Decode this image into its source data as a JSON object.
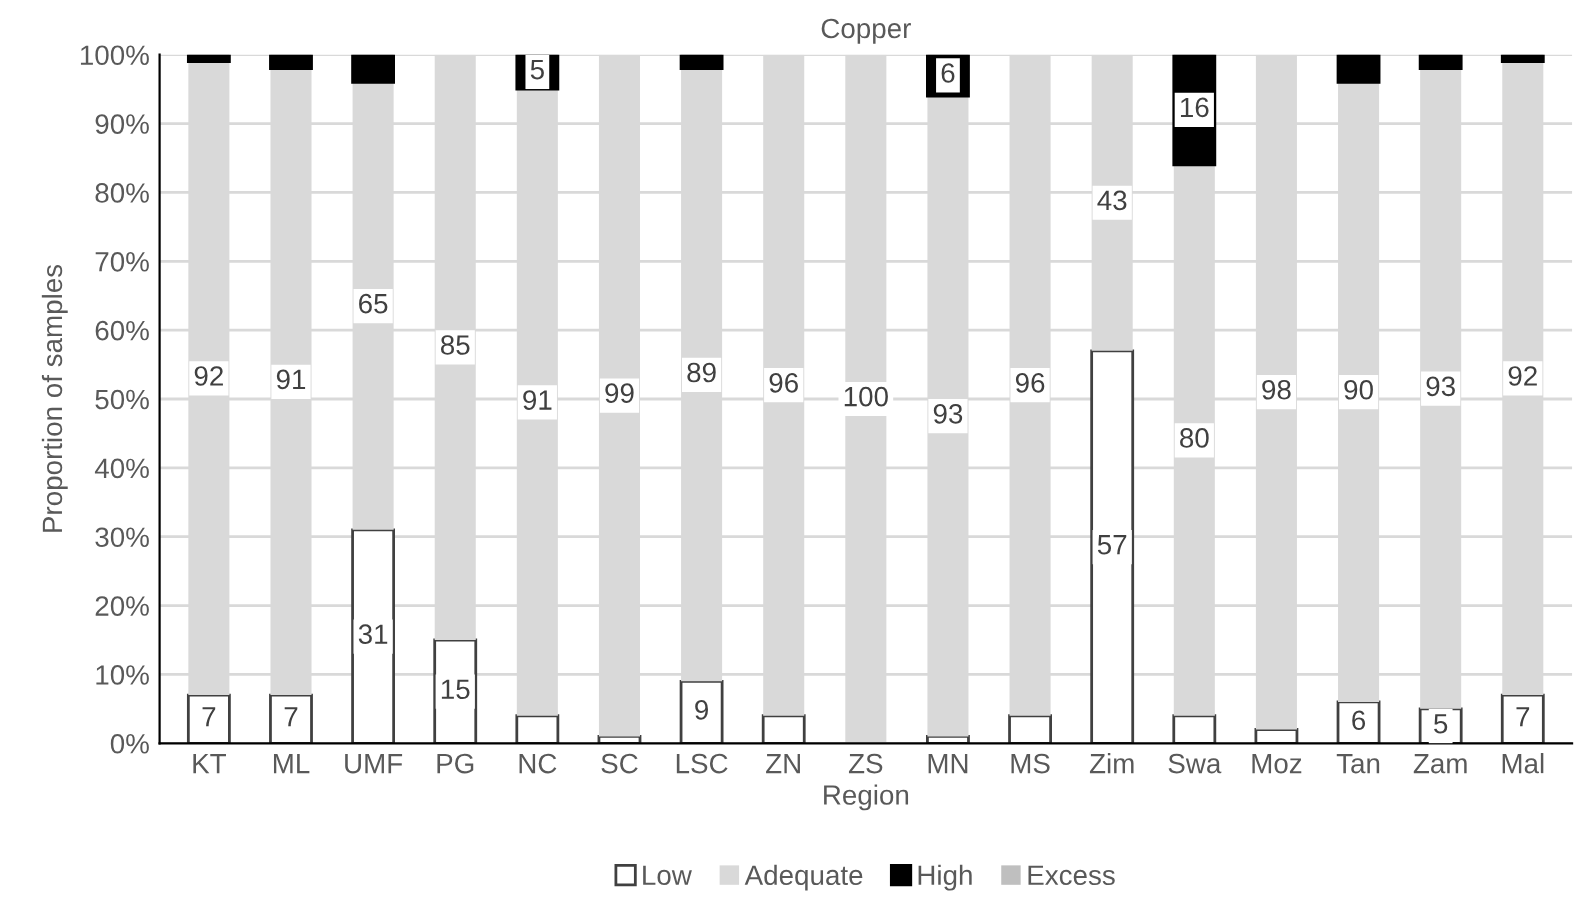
{
  "chart_data": {
    "type": "bar",
    "stacked": true,
    "title": "Copper",
    "xlabel": "Region",
    "ylabel": "Proportion of samples",
    "categories": [
      "KT",
      "ML",
      "UMF",
      "PG",
      "NC",
      "SC",
      "LSC",
      "ZN",
      "ZS",
      "MN",
      "MS",
      "Zim",
      "Swa",
      "Moz",
      "Tan",
      "Zam",
      "Mal"
    ],
    "series": [
      {
        "name": "Low",
        "color": "#ffffff",
        "values": [
          7,
          7,
          31,
          15,
          4,
          1,
          9,
          4,
          0,
          1,
          4,
          57,
          4,
          2,
          6,
          5,
          7
        ],
        "value_labels": [
          "7",
          "7",
          "31",
          "15",
          null,
          null,
          "9",
          null,
          null,
          null,
          null,
          "57",
          null,
          null,
          "6",
          "5",
          "7"
        ]
      },
      {
        "name": "Adequate",
        "color": "#d9d9d9",
        "values": [
          92,
          91,
          65,
          85,
          91,
          99,
          89,
          96,
          100,
          93,
          96,
          43,
          80,
          98,
          90,
          93,
          92
        ],
        "value_labels": [
          "92",
          "91",
          "65",
          "85",
          "91",
          "99",
          "89",
          "96",
          "100",
          "93",
          "96",
          "43",
          "80",
          "98",
          "90",
          "93",
          "92"
        ]
      },
      {
        "name": "High",
        "color": "#000000",
        "values": [
          1,
          2,
          4,
          0,
          5,
          0,
          2,
          0,
          0,
          6,
          0,
          0,
          16,
          0,
          4,
          2,
          1
        ],
        "value_labels": [
          null,
          null,
          null,
          null,
          "5",
          null,
          null,
          null,
          null,
          "6",
          null,
          null,
          "16",
          null,
          null,
          null,
          null
        ]
      },
      {
        "name": "Excess",
        "color": "#bfbfbf",
        "values": [
          0,
          0,
          0,
          0,
          0,
          0,
          0,
          0,
          0,
          0,
          0,
          0,
          0,
          0,
          0,
          0,
          0
        ]
      }
    ],
    "ylim": [
      0,
      100
    ],
    "yticks": [
      {
        "value": 0,
        "label": "0%"
      },
      {
        "value": 10,
        "label": "10%"
      },
      {
        "value": 20,
        "label": "20%"
      },
      {
        "value": 30,
        "label": "30%"
      },
      {
        "value": 40,
        "label": "40%"
      },
      {
        "value": 50,
        "label": "50%"
      },
      {
        "value": 60,
        "label": "60%"
      },
      {
        "value": 70,
        "label": "70%"
      },
      {
        "value": 80,
        "label": "80%"
      },
      {
        "value": 90,
        "label": "90%"
      },
      {
        "value": 100,
        "label": "100%"
      }
    ],
    "grid": "y",
    "legend": "bottom"
  }
}
